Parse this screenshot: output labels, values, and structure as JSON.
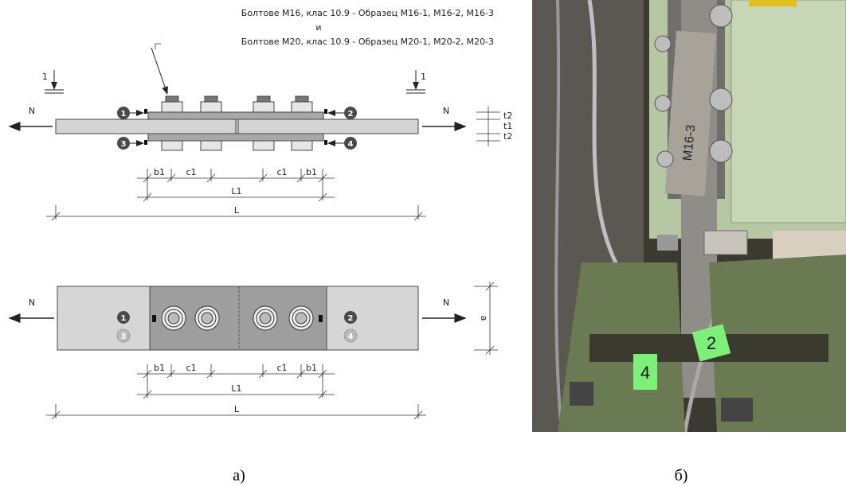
{
  "drawing": {
    "title_lines": [
      "Болтове М16, клас 10.9 - Образец М16-1, М16-2, М16-3",
      "и",
      "Болтове М20, клас 10.9 - Образец М20-1, М20-2, М20-3"
    ],
    "section_mark": "1",
    "force": "N",
    "sensors": [
      "1",
      "2",
      "3",
      "4"
    ],
    "thickness": [
      "t2",
      "t1",
      "t2"
    ],
    "dims": {
      "b1": "b1",
      "c1": "c1",
      "L1": "L1",
      "L": "L",
      "a": "a"
    }
  },
  "photo": {
    "specimen_label": "M16-3",
    "tags": [
      "4",
      "2"
    ]
  },
  "captions": [
    "а)",
    "б)"
  ]
}
